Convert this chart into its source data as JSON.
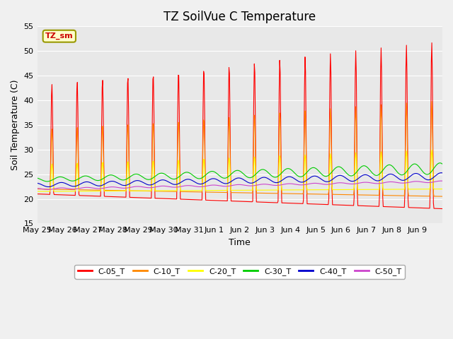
{
  "title": "TZ SoilVue C Temperature",
  "ylabel": "Soil Temperature (C)",
  "xlabel": "Time",
  "ylim": [
    15,
    55
  ],
  "background_color": "#f0f0f0",
  "plot_bg_color": "#e8e8e8",
  "series_colors": {
    "C-05_T": "#ff0000",
    "C-10_T": "#ff8800",
    "C-20_T": "#ffff00",
    "C-30_T": "#00cc00",
    "C-40_T": "#0000cc",
    "C-50_T": "#cc44cc"
  },
  "legend_label": "TZ_sm",
  "legend_box_color": "#ffffcc",
  "legend_box_edge": "#999900",
  "x_tick_labels": [
    "May 25",
    "May 26",
    "May 27",
    "May 28",
    "May 29",
    "May 30",
    "May 31",
    "Jun 1",
    "Jun 2",
    "Jun 3",
    "Jun 4",
    "Jun 5",
    "Jun 6",
    "Jun 7",
    "Jun 8",
    "Jun 9"
  ],
  "yticks": [
    15,
    20,
    25,
    30,
    35,
    40,
    45,
    50,
    55
  ],
  "title_fontsize": 12,
  "axis_fontsize": 9,
  "tick_fontsize": 8
}
